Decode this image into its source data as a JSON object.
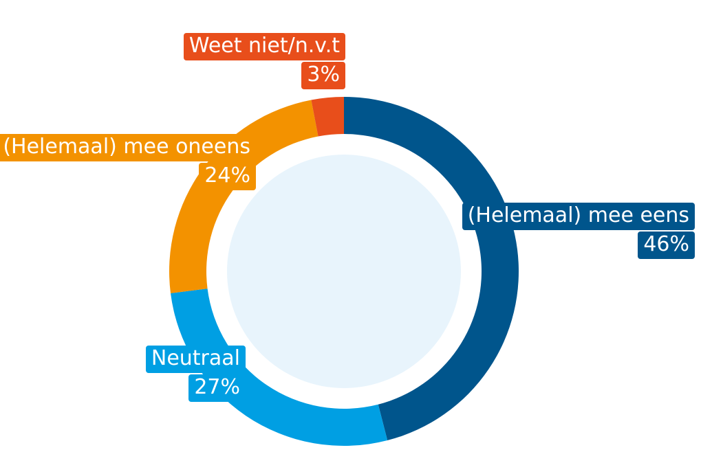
{
  "chart_data": {
    "type": "pie",
    "variant": "donut",
    "slices": [
      {
        "label": "(Helemaal) mee eens",
        "value": 46,
        "value_label": "46%",
        "color": "#00558c"
      },
      {
        "label": "Neutraal",
        "value": 27,
        "value_label": "27%",
        "color": "#009fe3"
      },
      {
        "label": "(Helemaal) mee oneens",
        "value": 24,
        "value_label": "24%",
        "color": "#f39200"
      },
      {
        "label": "Weet niet/n.v.t",
        "value": 3,
        "value_label": "3%",
        "color": "#e84e1b"
      }
    ],
    "start_angle": "top",
    "direction": "clockwise",
    "inner_fill": "#e8f4fc",
    "labels_visible": true
  }
}
